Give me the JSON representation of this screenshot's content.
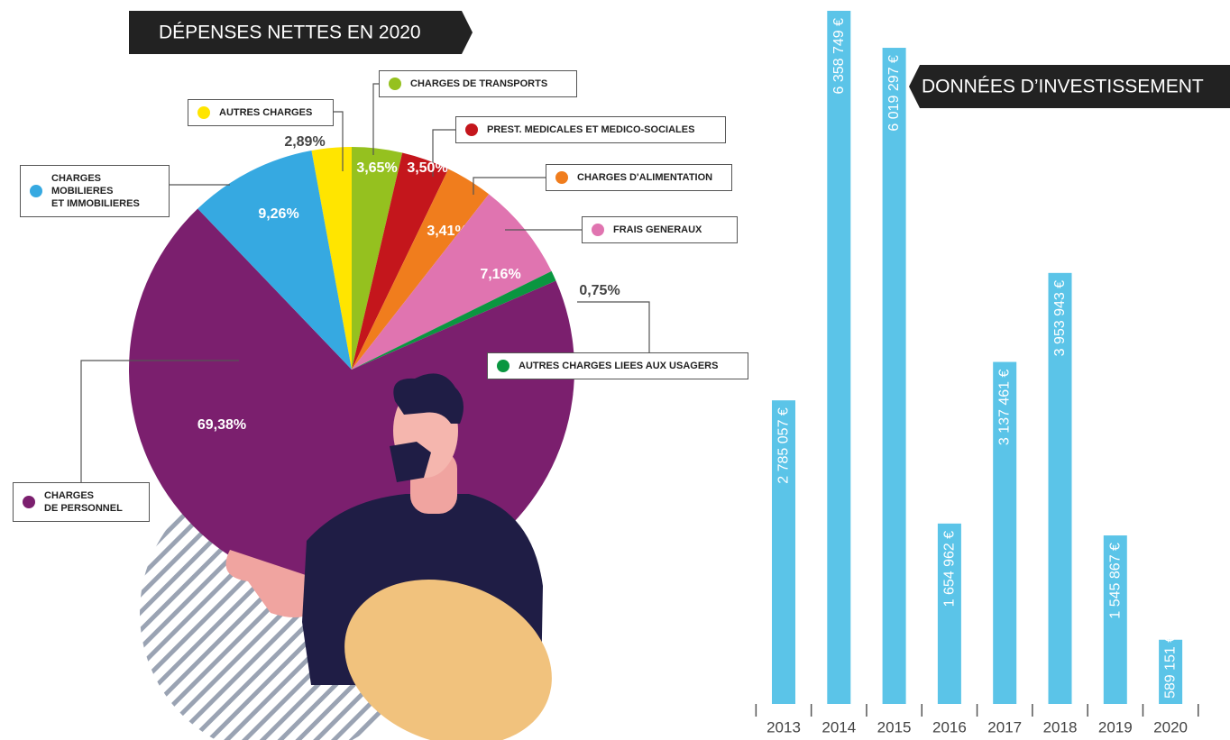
{
  "chart_data": [
    {
      "type": "pie",
      "title": "DÉPENSES NETTES EN 2020",
      "categories": [
        "AUTRES CHARGES",
        "CHARGES DE TRANSPORTS",
        "PREST. MEDICALES ET MEDICO-SOCIALES",
        "CHARGES D'ALIMENTATION",
        "FRAIS GENERAUX",
        "AUTRES CHARGES LIEES AUX USAGERS",
        "CHARGES\n DE PERSONNEL",
        "CHARGES MOBILIERES\nET IMMOBILIERES"
      ],
      "values": [
        2.89,
        3.65,
        3.5,
        3.41,
        7.16,
        0.75,
        69.38,
        9.26
      ],
      "value_labels": [
        "2,89%",
        "3,65%",
        "3,50%",
        "3,41%",
        "7,16%",
        "0,75%",
        "69,38%",
        "9,26%"
      ],
      "colors": [
        "#ffe500",
        "#95c11f",
        "#c4161c",
        "#f07d1d",
        "#e074b0",
        "#0a9640",
        "#7b1f6e",
        "#36a9e1"
      ]
    },
    {
      "type": "bar",
      "title": "DONNÉES D’INVESTISSEMENT",
      "categories": [
        "2013",
        "2014",
        "2015",
        "2016",
        "2017",
        "2018",
        "2019",
        "2020"
      ],
      "values": [
        2785057,
        6358749,
        6019297,
        1654962,
        3137461,
        3953943,
        1545867,
        589151
      ],
      "value_labels": [
        "2 785 057 €",
        "6 358 749 €",
        "6 019 297 €",
        "1 654 962 €",
        "3 137 461 €",
        "3 953 943 €",
        "1 545 867 €",
        "589 151 €"
      ],
      "color": "#5bc4e8",
      "ylim": [
        0,
        6400000
      ]
    }
  ]
}
